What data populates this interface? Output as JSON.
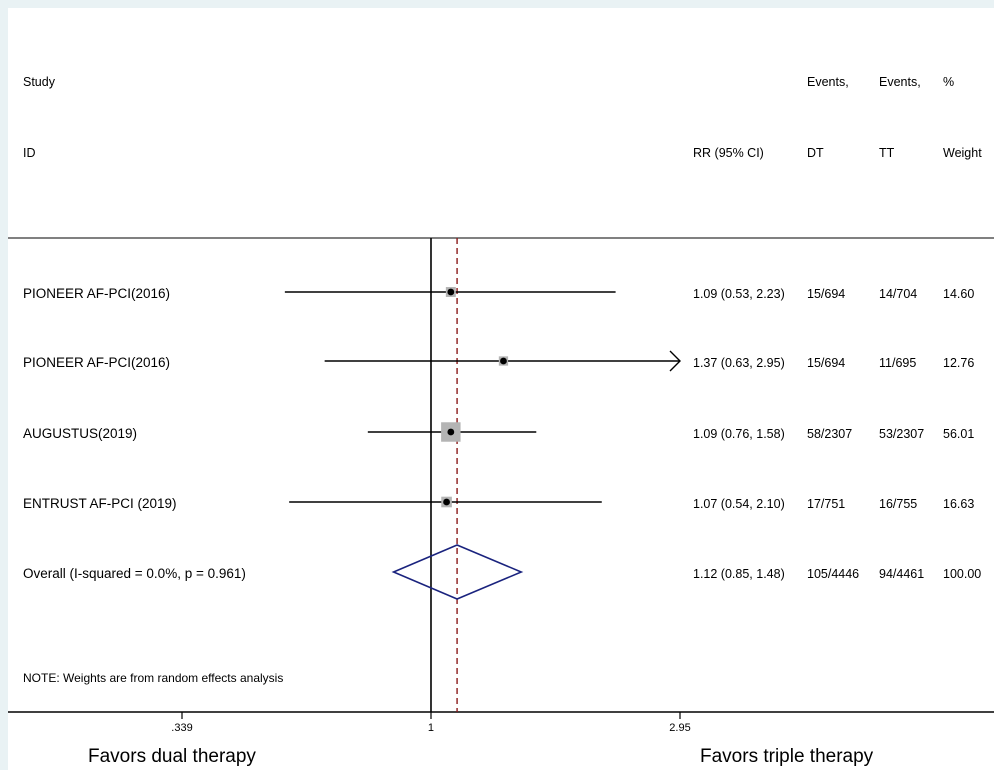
{
  "chart_data": {
    "type": "forest",
    "scale": "log",
    "x_ticks": [
      ".339",
      "1",
      "2.95"
    ],
    "xlim": [
      0.339,
      2.95
    ],
    "favors_left": "Favors dual therapy",
    "favors_right": "Favors triple therapy",
    "header": {
      "study_line1": "Study",
      "study_line2": "ID",
      "rr_label": "RR (95% CI)",
      "dt_line1": "Events,",
      "dt_line2": "DT",
      "tt_line1": "Events,",
      "tt_line2": "TT",
      "wt_line1": "%",
      "wt_line2": "Weight"
    },
    "studies": [
      {
        "name": "PIONEER AF-PCI(2016)",
        "rr": 1.09,
        "lower": 0.53,
        "upper": 2.23,
        "rr_text": "1.09 (0.53, 2.23)",
        "events_dt": "15/694",
        "events_tt": "14/704",
        "weight": "14.60",
        "weight_value": 14.6
      },
      {
        "name": "PIONEER AF-PCI(2016)",
        "rr": 1.37,
        "lower": 0.63,
        "upper": 2.95,
        "rr_text": "1.37 (0.63, 2.95)",
        "events_dt": "15/694",
        "events_tt": "11/695",
        "weight": "12.76",
        "weight_value": 12.76,
        "arrow_right": true
      },
      {
        "name": "AUGUSTUS(2019)",
        "rr": 1.09,
        "lower": 0.76,
        "upper": 1.58,
        "rr_text": "1.09 (0.76, 1.58)",
        "events_dt": "58/2307",
        "events_tt": "53/2307",
        "weight": "56.01",
        "weight_value": 56.01
      },
      {
        "name": "ENTRUST AF-PCI (2019)",
        "rr": 1.07,
        "lower": 0.54,
        "upper": 2.1,
        "rr_text": "1.07 (0.54, 2.10)",
        "events_dt": "17/751",
        "events_tt": "16/755",
        "weight": "16.63",
        "weight_value": 16.63
      }
    ],
    "overall": {
      "name": "Overall  (I-squared = 0.0%, p = 0.961)",
      "rr": 1.12,
      "lower": 0.85,
      "upper": 1.48,
      "rr_text": "1.12 (0.85, 1.48)",
      "events_dt": "105/4446",
      "events_tt": "94/4461",
      "weight": "100.00"
    },
    "note": "NOTE: Weights are from random effects analysis",
    "colors": {
      "diamond": "#1a237e",
      "reference_dashed": "#8b1a1a",
      "weight_box": "#b4b4b4",
      "line": "#000000"
    }
  }
}
